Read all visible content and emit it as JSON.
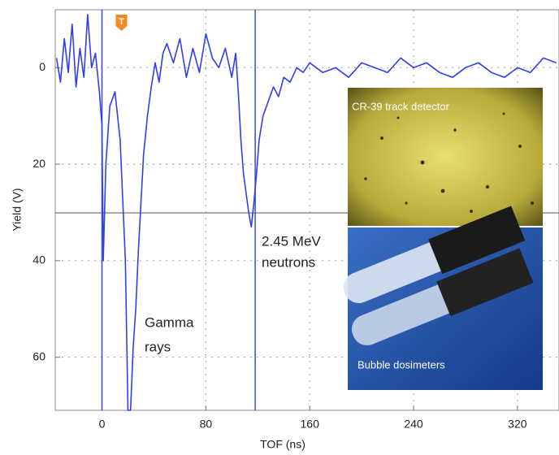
{
  "chart_data": {
    "type": "line",
    "xlabel": "TOF (ns)",
    "ylabel": "Yield (V)",
    "xlim": [
      -36,
      352
    ],
    "ylim": [
      -12,
      71
    ],
    "y_inverted": true,
    "xticks": [
      0,
      80,
      160,
      240,
      320
    ],
    "yticks": [
      0,
      20,
      40,
      60
    ],
    "grid": true,
    "x": [
      -35,
      -32,
      -29,
      -26,
      -23,
      -20,
      -17,
      -14,
      -11,
      -8,
      -5,
      -2,
      0,
      1,
      3,
      6,
      10,
      14,
      18,
      20,
      22,
      24,
      26,
      28,
      30,
      32,
      35,
      38,
      41,
      44,
      47,
      50,
      55,
      60,
      65,
      70,
      75,
      80,
      85,
      90,
      95,
      100,
      103,
      105,
      107,
      109,
      111,
      113,
      115,
      117,
      119,
      121,
      124,
      128,
      132,
      136,
      140,
      145,
      150,
      155,
      160,
      170,
      180,
      190,
      200,
      210,
      220,
      230,
      240,
      250,
      260,
      270,
      280,
      290,
      300,
      310,
      320,
      330,
      340,
      350
    ],
    "series": [
      {
        "color": "#2f3ff0",
        "values": [
          -2,
          3,
          -6,
          1,
          -9,
          4,
          -4,
          2,
          -11,
          0,
          -3,
          5,
          12,
          40,
          20,
          8,
          5,
          15,
          40,
          71,
          71,
          58,
          50,
          38,
          28,
          18,
          10,
          4,
          -1,
          3,
          -3,
          -5,
          -1,
          -6,
          2,
          -4,
          1,
          -7,
          -2,
          0,
          -4,
          2,
          -3,
          5,
          15,
          22,
          26,
          30,
          33,
          28,
          22,
          15,
          10,
          7,
          4,
          6,
          2,
          3,
          0,
          1,
          -1,
          1,
          0,
          2,
          -1,
          0,
          1,
          -2,
          0,
          -1,
          1,
          2,
          0,
          -1,
          1,
          2,
          0,
          1,
          -2,
          -1
        ]
      }
    ],
    "cursors": [
      0,
      118
    ],
    "marker": {
      "label": "T",
      "x": 15
    },
    "annotations": [
      [
        "Gamma",
        "rays"
      ],
      [
        "2.45 MeV",
        "neutrons"
      ]
    ],
    "insets": [
      "CR-39 track detector",
      "Bubble dosimeters"
    ]
  }
}
